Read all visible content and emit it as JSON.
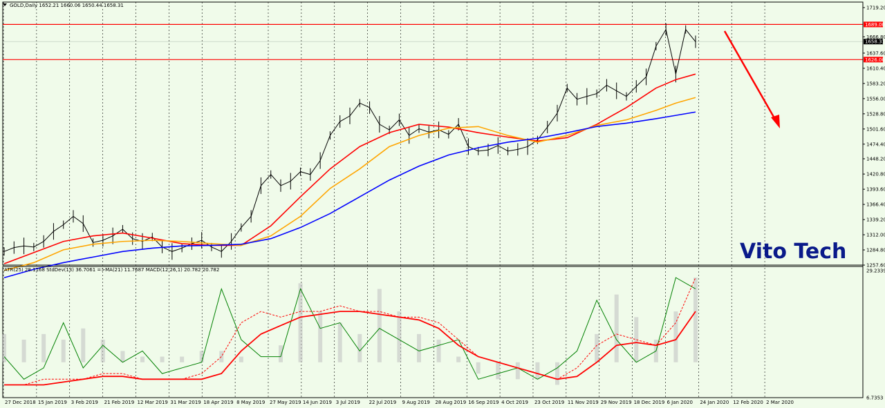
{
  "header": {
    "main_title": "GOLD,Daily  1652.21 1660.06 1650.44 1658.31",
    "indicator_title": "ATR(25) 28.1168  StdDev(13) 36.7061  =>MA(21) 11.7687  MACD(12,26,1) 20.782 20.782"
  },
  "watermark": "Vito Tech",
  "colors": {
    "background": "#f0fbea",
    "grid": "#000000",
    "level_line": "#ff0000",
    "ma_red": "#ff0000",
    "ma_orange": "#ffa500",
    "ma_blue": "#0000ff",
    "arrow": "#ff0000",
    "brand": "#0a1a8a"
  },
  "chart_data": [
    {
      "type": "line",
      "title": "GOLD,Daily  1652.21 1660.06 1650.44 1658.31",
      "x_ticks": [
        "27 Dec 2018",
        "15 Jan 2019",
        "3 Feb 2019",
        "21 Feb 2019",
        "12 Mar 2019",
        "31 Mar 2019",
        "18 Apr 2019",
        "8 May 2019",
        "27 May 2019",
        "14 Jun 2019",
        "3 Jul 2019",
        "22 Jul 2019",
        "9 Aug 2019",
        "28 Aug 2019",
        "16 Sep 2019",
        "4 Oct 2019",
        "23 Oct 2019",
        "11 Nov 2019",
        "29 Nov 2019",
        "18 Dec 2019",
        "6 Jan 2020",
        "24 Jan 2020",
        "12 Feb 2020",
        "2 Mar 2020"
      ],
      "y_ticks": [
        "1719.20",
        "1666.80",
        "1637.60",
        "1610.40",
        "1583.20",
        "1556.00",
        "1528.80",
        "1501.60",
        "1474.40",
        "1448.20",
        "1420.80",
        "1393.60",
        "1366.40",
        "1339.20",
        "1312.00",
        "1284.80",
        "1257.60"
      ],
      "ylim": [
        1257.6,
        1719.2
      ],
      "levels": [
        {
          "label": "1689.00",
          "value": 1689.0
        },
        {
          "label": "1626.00",
          "value": 1626.0
        }
      ],
      "current": {
        "label": "1658.31",
        "value": 1658.31
      },
      "series": [
        {
          "color": "#000000",
          "style": "price",
          "x": [
            0,
            1,
            2,
            3,
            4,
            5,
            6,
            7,
            8,
            9,
            10,
            11,
            12,
            13,
            14,
            15,
            16,
            17,
            18,
            19,
            20,
            21,
            22,
            23,
            24,
            25,
            26,
            27,
            28,
            29,
            30,
            31,
            32,
            33,
            34,
            35,
            36,
            37,
            38,
            39,
            40,
            41,
            42,
            43,
            44,
            45,
            46,
            47,
            48,
            49,
            50,
            51,
            52,
            53,
            54,
            55,
            56,
            57,
            58,
            59,
            60,
            61,
            62,
            63,
            64,
            65,
            66,
            67,
            68,
            69,
            70
          ],
          "values": [
            1282,
            1289,
            1292,
            1290,
            1300,
            1318,
            1330,
            1345,
            1332,
            1298,
            1302,
            1310,
            1322,
            1305,
            1300,
            1308,
            1290,
            1282,
            1288,
            1296,
            1302,
            1290,
            1282,
            1300,
            1325,
            1345,
            1400,
            1420,
            1400,
            1408,
            1425,
            1420,
            1445,
            1490,
            1515,
            1525,
            1548,
            1540,
            1510,
            1500,
            1518,
            1490,
            1502,
            1496,
            1500,
            1492,
            1510,
            1470,
            1462,
            1464,
            1472,
            1462,
            1465,
            1470,
            1482,
            1505,
            1530,
            1575,
            1555,
            1560,
            1565,
            1580,
            1570,
            1560,
            1578,
            1595,
            1650,
            1680,
            1600,
            1680,
            1658
          ]
        },
        {
          "color": "#ff0000",
          "style": "ma",
          "x": [
            0,
            3,
            6,
            9,
            12,
            15,
            18,
            21,
            24,
            27,
            30,
            33,
            36,
            39,
            42,
            45,
            48,
            51,
            54,
            57,
            60,
            63,
            66,
            68,
            70
          ],
          "values": [
            1260,
            1280,
            1300,
            1310,
            1315,
            1306,
            1296,
            1293,
            1293,
            1328,
            1380,
            1430,
            1470,
            1495,
            1510,
            1505,
            1495,
            1487,
            1480,
            1486,
            1510,
            1540,
            1575,
            1590,
            1600
          ]
        },
        {
          "color": "#ffa500",
          "style": "ma",
          "x": [
            0,
            3,
            6,
            9,
            12,
            15,
            18,
            21,
            24,
            27,
            30,
            33,
            36,
            39,
            42,
            45,
            48,
            51,
            54,
            57,
            60,
            63,
            66,
            68,
            70
          ],
          "values": [
            1248,
            1262,
            1285,
            1295,
            1300,
            1302,
            1300,
            1296,
            1293,
            1310,
            1345,
            1395,
            1430,
            1470,
            1490,
            1503,
            1506,
            1490,
            1478,
            1490,
            1508,
            1518,
            1535,
            1548,
            1558
          ]
        },
        {
          "color": "#0000ff",
          "style": "ma",
          "x": [
            0,
            3,
            6,
            9,
            12,
            15,
            18,
            21,
            24,
            27,
            30,
            33,
            36,
            39,
            42,
            45,
            48,
            51,
            54,
            57,
            60,
            63,
            66,
            68,
            70
          ],
          "values": [
            1235,
            1250,
            1262,
            1272,
            1282,
            1288,
            1292,
            1293,
            1295,
            1305,
            1325,
            1350,
            1380,
            1410,
            1435,
            1455,
            1468,
            1478,
            1485,
            1495,
            1506,
            1512,
            1520,
            1526,
            1532
          ]
        }
      ]
    },
    {
      "type": "line",
      "title": "ATR(25) 28.1168  StdDev(13) 36.7061  =>MA(21) 11.7687  MACD(12,26,1) 20.782 20.782",
      "y_ticks": [
        "29.2339",
        "6.7353"
      ],
      "ylim": [
        6.7353,
        29.2339
      ],
      "series": [
        {
          "color": "#c0c0c0",
          "style": "histogram",
          "x": [
            0,
            2,
            4,
            6,
            8,
            10,
            12,
            14,
            16,
            18,
            20,
            22,
            24,
            26,
            28,
            30,
            32,
            34,
            36,
            38,
            40,
            42,
            44,
            46,
            48,
            50,
            52,
            54,
            56,
            58,
            60,
            62,
            64,
            66,
            68,
            70
          ],
          "values": [
            18,
            17,
            18,
            17,
            19,
            17,
            15,
            14,
            14,
            14,
            15,
            15,
            14,
            13,
            16,
            27,
            22,
            20,
            18,
            26,
            22,
            18,
            17,
            14,
            11,
            10,
            10,
            10,
            9,
            13,
            18,
            25,
            21,
            17,
            22,
            28
          ]
        },
        {
          "color": "#008000",
          "style": "line",
          "x": [
            0,
            2,
            4,
            6,
            8,
            10,
            12,
            14,
            16,
            18,
            20,
            22,
            24,
            26,
            28,
            30,
            32,
            34,
            36,
            38,
            40,
            42,
            44,
            46,
            48,
            50,
            52,
            54,
            56,
            58,
            60,
            62,
            64,
            66,
            68,
            70
          ],
          "values": [
            14,
            10,
            12,
            20,
            12,
            16,
            13,
            15,
            11,
            12,
            13,
            26,
            17,
            14,
            14,
            26,
            19,
            20,
            15,
            19,
            17,
            15,
            16,
            17,
            10,
            11,
            12,
            10,
            12,
            15,
            24,
            17,
            13,
            15,
            28,
            26
          ]
        },
        {
          "color": "#ff0000",
          "style": "dashed",
          "x": [
            0,
            2,
            4,
            6,
            8,
            10,
            12,
            14,
            16,
            18,
            20,
            22,
            24,
            26,
            28,
            30,
            32,
            34,
            36,
            38,
            40,
            42,
            44,
            46,
            48,
            50,
            52,
            54,
            56,
            58,
            60,
            62,
            64,
            66,
            68,
            70
          ],
          "values": [
            9,
            9,
            10,
            10,
            10,
            11,
            11,
            10,
            10,
            10,
            11,
            14,
            20,
            22,
            21,
            22,
            22,
            23,
            22,
            22,
            21,
            21,
            20,
            17,
            14,
            13,
            12,
            11,
            10,
            12,
            16,
            18,
            17,
            16,
            20,
            28
          ]
        },
        {
          "color": "#ff0000",
          "style": "line",
          "x": [
            0,
            2,
            4,
            6,
            8,
            10,
            12,
            14,
            16,
            18,
            20,
            22,
            24,
            26,
            28,
            30,
            32,
            34,
            36,
            38,
            40,
            42,
            44,
            46,
            48,
            50,
            52,
            54,
            56,
            58,
            60,
            62,
            64,
            66,
            68,
            70
          ],
          "values": [
            9,
            9,
            9,
            9.5,
            10,
            10.5,
            10.5,
            10,
            10,
            10,
            10,
            11,
            15,
            18,
            19.5,
            21,
            21.5,
            22,
            22,
            21.5,
            21,
            20.5,
            19,
            16,
            14,
            13,
            12,
            11,
            10,
            10.5,
            13,
            16,
            16.5,
            16,
            17,
            22
          ]
        }
      ]
    }
  ]
}
